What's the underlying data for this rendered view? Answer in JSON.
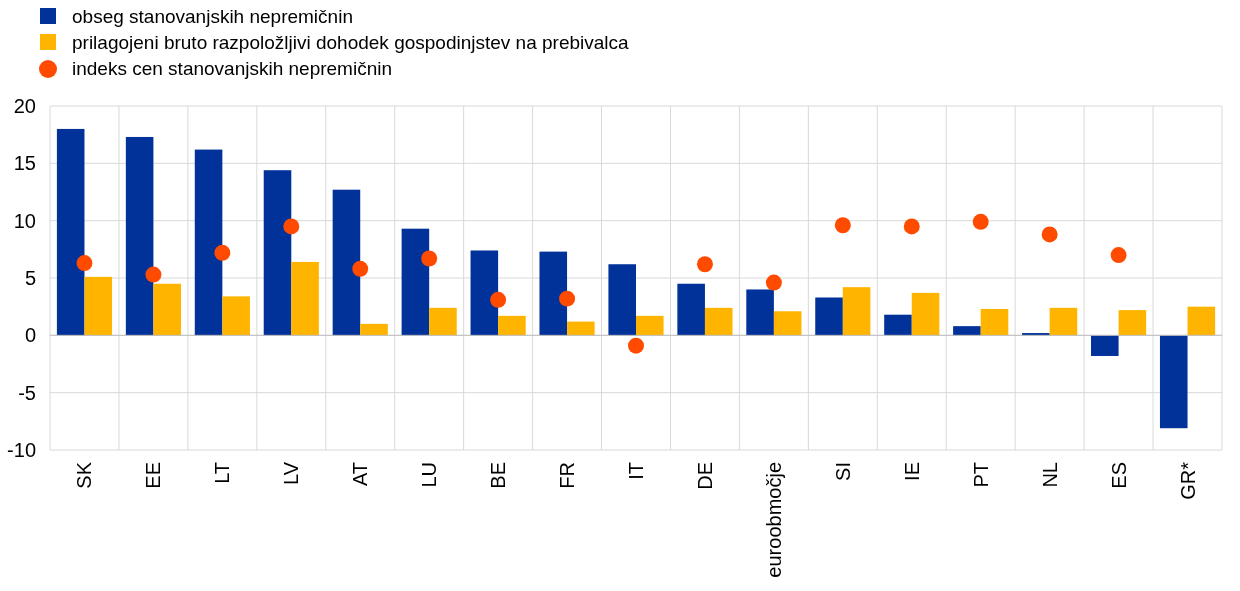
{
  "chart_data": {
    "type": "bar",
    "categories": [
      "SK",
      "EE",
      "LT",
      "LV",
      "AT",
      "LU",
      "BE",
      "FR",
      "IT",
      "DE",
      "euroobmočje",
      "SI",
      "IE",
      "PT",
      "NL",
      "ES",
      "GR*"
    ],
    "series": [
      {
        "name": "obseg stanovanjskih nepremičnin",
        "color": "#003299",
        "values": [
          18.0,
          17.3,
          16.2,
          14.4,
          12.7,
          9.3,
          7.4,
          7.3,
          6.2,
          4.5,
          4.0,
          3.3,
          1.8,
          0.8,
          0.2,
          -1.8,
          -8.1
        ]
      },
      {
        "name": "prilagojeni bruto razpoložljivi dohodek gospodinjstev na prebivalca",
        "color": "#ffb400",
        "values": [
          5.1,
          4.5,
          3.4,
          6.4,
          1.0,
          2.4,
          1.7,
          1.2,
          1.7,
          2.4,
          2.1,
          4.2,
          3.7,
          2.3,
          2.4,
          2.2,
          2.5
        ]
      },
      {
        "name": "indeks cen stanovanjskih nepremičnin",
        "type": "scatter",
        "color": "#ff4b00",
        "values": [
          6.3,
          5.3,
          7.2,
          9.5,
          5.8,
          6.7,
          3.1,
          3.2,
          -0.9,
          6.2,
          4.6,
          9.6,
          9.5,
          9.9,
          8.8,
          7.0,
          null
        ]
      }
    ],
    "ylim": [
      -10,
      20
    ],
    "yticks": [
      -10,
      -5,
      0,
      5,
      10,
      15,
      20
    ],
    "grid": true,
    "legend": "top left",
    "marker": "circle"
  }
}
